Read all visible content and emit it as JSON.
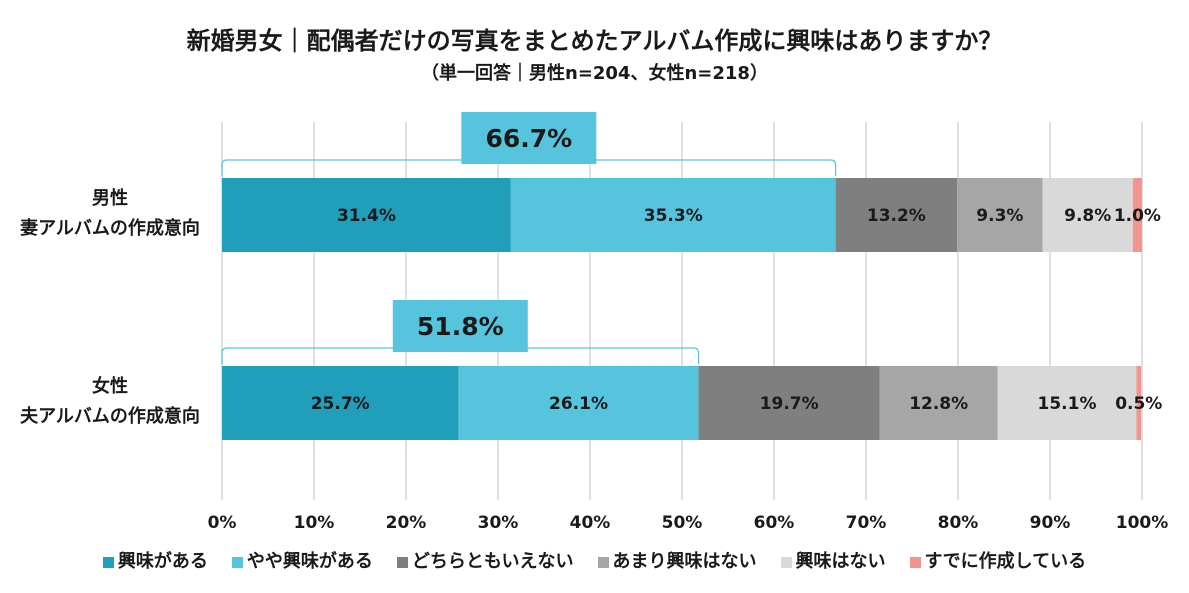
{
  "chart_data": {
    "type": "bar",
    "orientation": "horizontal",
    "stacked": true,
    "title": "新婚男女｜配偶者だけの写真をまとめたアルバム作成に興味はありますか？",
    "subtitle": "（単一回答｜男性n=204、女性n=218）",
    "categories": [
      [
        "男性",
        "妻アルバムの作成意向"
      ],
      [
        "女性",
        "夫アルバムの作成意向"
      ]
    ],
    "series": [
      {
        "name": "興味がある",
        "color": "#219fba",
        "values": [
          31.4,
          25.7
        ],
        "labels": [
          "31.4%",
          "25.7%"
        ]
      },
      {
        "name": "やや興味がある",
        "color": "#56c4dd",
        "values": [
          35.3,
          26.1
        ],
        "labels": [
          "35.3%",
          "26.1%"
        ]
      },
      {
        "name": "どちらともいえない",
        "color": "#7f7f7f",
        "values": [
          13.2,
          19.7
        ],
        "labels": [
          "13.2%",
          "19.7%"
        ]
      },
      {
        "name": "あまり興味はない",
        "color": "#a6a6a6",
        "values": [
          9.3,
          12.8
        ],
        "labels": [
          "9.3%",
          "12.8%"
        ]
      },
      {
        "name": "興味はない",
        "color": "#d9d9d9",
        "values": [
          9.8,
          15.1
        ],
        "labels": [
          "9.8%",
          "15.1%"
        ]
      },
      {
        "name": "すでに作成している",
        "color": "#f3958f",
        "values": [
          1.0,
          0.5
        ],
        "labels": [
          "1.0%",
          "0.5%"
        ]
      }
    ],
    "annotations": [
      {
        "category_index": 0,
        "span": [
          0,
          66.7
        ],
        "text": "66.7%"
      },
      {
        "category_index": 1,
        "span": [
          0,
          51.8
        ],
        "text": "51.8%"
      }
    ],
    "annotation_color": "#56c4dd",
    "xlim": [
      0,
      100
    ],
    "xticks": [
      0,
      10,
      20,
      30,
      40,
      50,
      60,
      70,
      80,
      90,
      100
    ],
    "xtick_labels": [
      "0%",
      "10%",
      "20%",
      "30%",
      "40%",
      "50%",
      "60%",
      "70%",
      "80%",
      "90%",
      "100%"
    ],
    "grid": true,
    "legend_position": "bottom"
  }
}
